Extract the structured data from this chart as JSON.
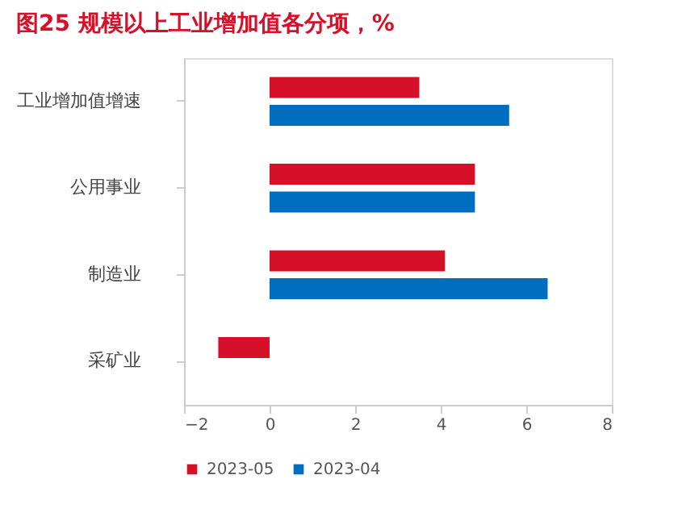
{
  "chart_data": {
    "type": "bar",
    "orientation": "horizontal",
    "title": "图25  规模以上工业增加值各分项，%",
    "categories": [
      "工业增加值增速",
      "公用事业",
      "制造业",
      "采矿业"
    ],
    "series": [
      {
        "name": "2023-05",
        "color": "#d7102a",
        "values": [
          3.5,
          4.8,
          4.1,
          -1.2
        ]
      },
      {
        "name": "2023-04",
        "color": "#006ec0",
        "values": [
          5.6,
          4.8,
          6.5,
          null
        ]
      }
    ],
    "xlim": [
      -2,
      8
    ],
    "xticks": [
      -2,
      0,
      2,
      4,
      6,
      8
    ],
    "grid": false,
    "legend": "bottom"
  }
}
